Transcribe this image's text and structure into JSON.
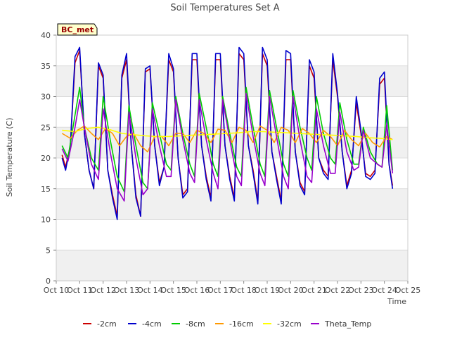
{
  "chart_data": {
    "type": "line",
    "title": "Soil Temperatures Set A",
    "xlabel": "Time",
    "ylabel": "Soil Temperature (C)",
    "xlim": [
      10,
      25
    ],
    "ylim": [
      0,
      40
    ],
    "x_ticks": [
      10,
      11,
      12,
      13,
      14,
      15,
      16,
      17,
      18,
      19,
      20,
      21,
      22,
      23,
      24,
      25
    ],
    "x_tick_labels": [
      "Oct 10",
      "Oct 11",
      "Oct 12",
      "Oct 13",
      "Oct 14",
      "Oct 15",
      "Oct 16",
      "Oct 17",
      "Oct 18",
      "Oct 19",
      "Oct 20",
      "Oct 21",
      "Oct 22",
      "Oct 23",
      "Oct 24",
      "Oct 25"
    ],
    "y_ticks": [
      0,
      5,
      10,
      15,
      20,
      25,
      30,
      35,
      40
    ],
    "y_tick_labels": [
      "0",
      "5",
      "10",
      "15",
      "20",
      "25",
      "30",
      "35",
      "40"
    ],
    "grid": true,
    "legend_placement": "bottom",
    "site_label": "BC_met",
    "series": [
      {
        "name": "-2cm",
        "color": "#cc0000",
        "x": [
          10.25,
          10.4,
          10.6,
          10.8,
          11.0,
          11.2,
          11.4,
          11.6,
          11.8,
          12.0,
          12.2,
          12.4,
          12.6,
          12.8,
          13.0,
          13.2,
          13.4,
          13.6,
          13.8,
          14.0,
          14.2,
          14.4,
          14.6,
          14.8,
          15.0,
          15.2,
          15.4,
          15.6,
          15.8,
          16.0,
          16.2,
          16.4,
          16.6,
          16.8,
          17.0,
          17.2,
          17.4,
          17.6,
          17.8,
          18.0,
          18.2,
          18.4,
          18.6,
          18.8,
          19.0,
          19.2,
          19.4,
          19.6,
          19.8,
          20.0,
          20.2,
          20.4,
          20.6,
          20.8,
          21.0,
          21.2,
          21.4,
          21.6,
          21.8,
          22.0,
          22.2,
          22.4,
          22.6,
          22.8,
          23.0,
          23.2,
          23.4,
          23.6,
          23.8,
          24.0,
          24.2,
          24.35
        ],
        "y": [
          20.5,
          18.5,
          22.0,
          35.5,
          37.5,
          24.0,
          18.0,
          15.0,
          35.0,
          33.0,
          18.0,
          14.0,
          10.5,
          33.0,
          36.0,
          22.0,
          14.0,
          10.5,
          34.0,
          34.5,
          22.0,
          16.0,
          18.5,
          36.0,
          34.0,
          20.0,
          14.0,
          15.0,
          36.0,
          36.0,
          22.0,
          17.0,
          13.5,
          36.0,
          36.0,
          22.0,
          17.0,
          13.5,
          37.0,
          36.0,
          22.0,
          18.0,
          13.0,
          37.0,
          35.0,
          21.0,
          17.0,
          13.0,
          36.0,
          36.0,
          21.0,
          16.0,
          14.5,
          35.0,
          33.0,
          20.0,
          18.0,
          17.0,
          36.0,
          30.0,
          21.0,
          15.5,
          18.0,
          29.0,
          24.0,
          17.5,
          17.0,
          18.0,
          32.0,
          33.0,
          19.0,
          15.5
        ]
      },
      {
        "name": "-4cm",
        "color": "#0000cc",
        "x": [
          10.25,
          10.4,
          10.6,
          10.8,
          11.0,
          11.2,
          11.4,
          11.6,
          11.8,
          12.0,
          12.2,
          12.4,
          12.6,
          12.8,
          13.0,
          13.2,
          13.4,
          13.6,
          13.8,
          14.0,
          14.2,
          14.4,
          14.6,
          14.8,
          15.0,
          15.2,
          15.4,
          15.6,
          15.8,
          16.0,
          16.2,
          16.4,
          16.6,
          16.8,
          17.0,
          17.2,
          17.4,
          17.6,
          17.8,
          18.0,
          18.2,
          18.4,
          18.6,
          18.8,
          19.0,
          19.2,
          19.4,
          19.6,
          19.8,
          20.0,
          20.2,
          20.4,
          20.6,
          20.8,
          21.0,
          21.2,
          21.4,
          21.6,
          21.8,
          22.0,
          22.2,
          22.4,
          22.6,
          22.8,
          23.0,
          23.2,
          23.4,
          23.6,
          23.8,
          24.0,
          24.2,
          24.35
        ],
        "y": [
          20.0,
          18.0,
          22.0,
          36.5,
          38.0,
          24.0,
          18.0,
          15.0,
          35.5,
          33.5,
          18.0,
          13.5,
          10.0,
          33.5,
          37.0,
          22.0,
          13.5,
          10.5,
          34.5,
          35.0,
          22.0,
          15.5,
          18.5,
          37.0,
          34.5,
          20.0,
          13.5,
          14.5,
          37.0,
          37.0,
          22.0,
          16.5,
          13.0,
          37.0,
          37.0,
          22.0,
          16.5,
          13.0,
          38.0,
          37.0,
          22.0,
          17.5,
          12.5,
          38.0,
          36.0,
          21.0,
          16.5,
          12.5,
          37.5,
          37.0,
          21.0,
          15.5,
          14.0,
          36.0,
          34.0,
          20.0,
          17.5,
          16.5,
          37.0,
          30.5,
          21.0,
          15.0,
          17.5,
          30.0,
          24.5,
          17.0,
          16.5,
          17.5,
          33.0,
          34.0,
          19.0,
          15.0
        ]
      },
      {
        "name": "-8cm",
        "color": "#00cc00",
        "x": [
          10.25,
          10.5,
          10.8,
          11.0,
          11.2,
          11.5,
          11.8,
          12.0,
          12.3,
          12.6,
          12.9,
          13.1,
          13.4,
          13.7,
          13.9,
          14.1,
          14.4,
          14.7,
          14.9,
          15.1,
          15.4,
          15.7,
          15.9,
          16.1,
          16.4,
          16.7,
          16.9,
          17.1,
          17.4,
          17.7,
          17.9,
          18.1,
          18.4,
          18.7,
          18.9,
          19.1,
          19.4,
          19.7,
          19.9,
          20.1,
          20.4,
          20.7,
          20.9,
          21.1,
          21.4,
          21.7,
          21.9,
          22.1,
          22.4,
          22.7,
          22.9,
          23.1,
          23.4,
          23.7,
          23.9,
          24.1,
          24.35
        ],
        "y": [
          22.0,
          20.0,
          27.0,
          31.5,
          25.0,
          20.0,
          18.0,
          30.0,
          23.0,
          17.0,
          14.5,
          28.5,
          22.0,
          16.0,
          15.0,
          29.0,
          24.0,
          19.0,
          18.0,
          30.0,
          24.0,
          19.0,
          17.0,
          30.5,
          25.0,
          19.0,
          17.0,
          30.0,
          24.0,
          18.5,
          17.0,
          31.5,
          25.0,
          19.0,
          17.0,
          31.0,
          25.0,
          19.0,
          17.0,
          31.0,
          25.0,
          20.0,
          18.0,
          30.0,
          24.0,
          20.0,
          19.0,
          29.0,
          23.0,
          19.0,
          19.0,
          25.0,
          21.0,
          19.0,
          18.5,
          28.5,
          18.0
        ]
      },
      {
        "name": "-16cm",
        "color": "#ff9900",
        "x": [
          10.25,
          10.6,
          10.9,
          11.2,
          11.5,
          11.8,
          12.1,
          12.4,
          12.7,
          13.0,
          13.3,
          13.6,
          13.9,
          14.2,
          14.5,
          14.8,
          15.1,
          15.4,
          15.7,
          16.0,
          16.3,
          16.6,
          16.9,
          17.2,
          17.5,
          17.8,
          18.1,
          18.4,
          18.7,
          19.0,
          19.3,
          19.6,
          19.9,
          20.2,
          20.5,
          20.8,
          21.1,
          21.4,
          21.7,
          22.0,
          22.3,
          22.6,
          22.9,
          23.2,
          23.5,
          23.8,
          24.1,
          24.35
        ],
        "y": [
          24.0,
          23.2,
          24.5,
          25.2,
          24.0,
          23.0,
          24.8,
          24.0,
          22.0,
          23.5,
          24.0,
          22.0,
          21.0,
          23.5,
          23.5,
          22.0,
          24.0,
          24.0,
          22.5,
          24.5,
          24.0,
          22.5,
          24.7,
          24.5,
          22.5,
          25.0,
          24.5,
          22.5,
          25.2,
          24.5,
          22.5,
          25.0,
          24.5,
          22.5,
          24.8,
          24.0,
          22.5,
          24.5,
          23.5,
          22.0,
          24.5,
          23.0,
          22.0,
          24.0,
          22.5,
          21.8,
          23.5,
          23.0
        ]
      },
      {
        "name": "-32cm",
        "color": "#ffff00",
        "x": [
          10.25,
          10.8,
          11.3,
          11.8,
          12.3,
          12.8,
          13.3,
          13.8,
          14.3,
          14.8,
          15.3,
          15.8,
          16.3,
          16.8,
          17.3,
          17.8,
          18.3,
          18.8,
          19.3,
          19.8,
          20.3,
          20.8,
          21.3,
          21.8,
          22.3,
          22.8,
          23.3,
          23.8,
          24.35
        ],
        "y": [
          24.5,
          24.3,
          24.8,
          25.0,
          24.6,
          24.0,
          23.8,
          23.6,
          23.5,
          23.5,
          23.6,
          23.7,
          23.8,
          23.9,
          24.0,
          24.1,
          24.3,
          24.3,
          24.2,
          24.1,
          24.0,
          23.9,
          23.8,
          23.7,
          23.6,
          23.5,
          23.3,
          23.2,
          23.0
        ]
      },
      {
        "name": "Theta_Temp",
        "color": "#9900cc",
        "x": [
          10.25,
          10.5,
          10.8,
          11.0,
          11.2,
          11.5,
          11.8,
          12.0,
          12.3,
          12.6,
          12.9,
          13.1,
          13.4,
          13.7,
          13.9,
          14.1,
          14.4,
          14.7,
          14.9,
          15.1,
          15.4,
          15.7,
          15.9,
          16.1,
          16.4,
          16.7,
          16.9,
          17.1,
          17.4,
          17.7,
          17.9,
          18.1,
          18.4,
          18.7,
          18.9,
          19.1,
          19.4,
          19.7,
          19.9,
          20.1,
          20.4,
          20.7,
          20.9,
          21.1,
          21.4,
          21.7,
          21.9,
          22.1,
          22.4,
          22.7,
          22.9,
          23.1,
          23.4,
          23.7,
          23.9,
          24.1,
          24.35
        ],
        "y": [
          21.5,
          19.5,
          25.0,
          29.5,
          25.0,
          19.0,
          16.5,
          28.0,
          21.0,
          15.0,
          13.0,
          27.5,
          20.0,
          14.0,
          15.0,
          28.0,
          22.0,
          17.0,
          17.0,
          29.5,
          23.0,
          17.5,
          16.0,
          29.5,
          23.0,
          17.5,
          15.0,
          29.5,
          23.0,
          17.0,
          15.5,
          30.5,
          23.5,
          17.5,
          15.5,
          30.0,
          23.5,
          17.0,
          15.0,
          30.0,
          23.0,
          17.0,
          16.0,
          28.0,
          22.0,
          17.5,
          17.5,
          27.5,
          21.0,
          18.0,
          18.5,
          24.5,
          20.0,
          19.0,
          18.5,
          25.5,
          17.5
        ]
      }
    ]
  }
}
